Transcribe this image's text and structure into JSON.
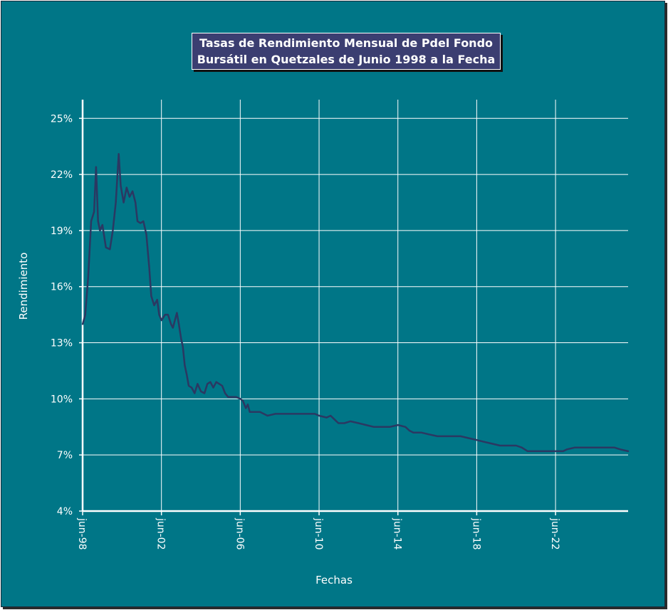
{
  "chart_data": {
    "type": "line",
    "title_lines": [
      "Tasas de Rendimiento Mensual de Pdel Fondo",
      "Bursátil en Quetzales de Junio 1998 a la Fecha"
    ],
    "xlabel": "Fechas",
    "ylabel": "Rendimiento",
    "ylim": [
      0.04,
      0.26
    ],
    "y_ticks": [
      0.04,
      0.07,
      0.1,
      0.13,
      0.16,
      0.19,
      0.22,
      0.25
    ],
    "y_tick_labels": [
      "4%",
      "7%",
      "10%",
      "13%",
      "16%",
      "19%",
      "22%",
      "25%"
    ],
    "x_ticks": [
      1998.4167,
      2002.4167,
      2006.4167,
      2010.4167,
      2014.4167,
      2018.4167,
      2022.4167
    ],
    "x_tick_labels": [
      "jun-98",
      "jun-02",
      "jun-06",
      "jun-10",
      "jun-14",
      "jun-18",
      "jun-22"
    ],
    "xlim": [
      1998.4167,
      2026.1
    ],
    "grid": true,
    "line_color": "#2b3862",
    "background_color": "#007687",
    "series": [
      {
        "x": [
          1998.42,
          1998.55,
          1998.7,
          1998.85,
          1999.0,
          1999.1,
          1999.2,
          1999.3,
          1999.42,
          1999.6,
          1999.8,
          1999.95,
          2000.1,
          2000.25,
          2000.35,
          2000.5,
          2000.65,
          2000.8,
          2000.95,
          2001.1,
          2001.2,
          2001.35,
          2001.5,
          2001.65,
          2001.8,
          2001.9,
          2002.05,
          2002.2,
          2002.3,
          2002.42,
          2002.6,
          2002.75,
          2002.9,
          2003.0,
          2003.1,
          2003.2,
          2003.3,
          2003.42,
          2003.5,
          2003.6,
          2003.7,
          2003.8,
          2003.95,
          2004.1,
          2004.25,
          2004.42,
          2004.6,
          2004.75,
          2004.9,
          2005.05,
          2005.2,
          2005.35,
          2005.5,
          2005.65,
          2005.8,
          2006.0,
          2006.2,
          2006.42,
          2006.55,
          2006.7,
          2006.8,
          2006.9,
          2007.1,
          2007.42,
          2007.8,
          2008.2,
          2008.42,
          2008.8,
          2009.2,
          2009.5,
          2009.8,
          2010.2,
          2010.42,
          2010.8,
          2011.0,
          2011.2,
          2011.4,
          2011.7,
          2012.0,
          2012.42,
          2012.8,
          2013.2,
          2013.6,
          2014.0,
          2014.42,
          2014.8,
          2015.0,
          2015.2,
          2015.6,
          2016.0,
          2016.42,
          2016.8,
          2017.2,
          2017.6,
          2018.0,
          2018.42,
          2018.8,
          2019.2,
          2019.6,
          2020.0,
          2020.42,
          2020.7,
          2021.0,
          2021.4,
          2021.8,
          2022.2,
          2022.42,
          2022.8,
          2023.0,
          2023.4,
          2023.8,
          2024.2,
          2024.6,
          2025.0,
          2025.4,
          2025.7,
          2026.1
        ],
        "values": [
          0.14,
          0.145,
          0.165,
          0.195,
          0.2,
          0.224,
          0.195,
          0.19,
          0.193,
          0.181,
          0.18,
          0.19,
          0.205,
          0.231,
          0.214,
          0.205,
          0.213,
          0.208,
          0.211,
          0.205,
          0.195,
          0.194,
          0.195,
          0.188,
          0.17,
          0.155,
          0.15,
          0.153,
          0.145,
          0.142,
          0.145,
          0.145,
          0.14,
          0.138,
          0.142,
          0.146,
          0.14,
          0.132,
          0.128,
          0.118,
          0.113,
          0.107,
          0.106,
          0.103,
          0.108,
          0.104,
          0.103,
          0.108,
          0.109,
          0.106,
          0.109,
          0.108,
          0.107,
          0.103,
          0.101,
          0.101,
          0.101,
          0.1,
          0.099,
          0.095,
          0.097,
          0.093,
          0.093,
          0.093,
          0.091,
          0.092,
          0.092,
          0.092,
          0.092,
          0.092,
          0.092,
          0.092,
          0.091,
          0.09,
          0.091,
          0.089,
          0.087,
          0.087,
          0.088,
          0.087,
          0.086,
          0.085,
          0.085,
          0.085,
          0.086,
          0.085,
          0.083,
          0.082,
          0.082,
          0.081,
          0.08,
          0.08,
          0.08,
          0.08,
          0.079,
          0.078,
          0.077,
          0.076,
          0.075,
          0.075,
          0.075,
          0.074,
          0.072,
          0.072,
          0.072,
          0.072,
          0.072,
          0.072,
          0.073,
          0.074,
          0.074,
          0.074,
          0.074,
          0.074,
          0.074,
          0.073,
          0.072
        ]
      }
    ]
  }
}
